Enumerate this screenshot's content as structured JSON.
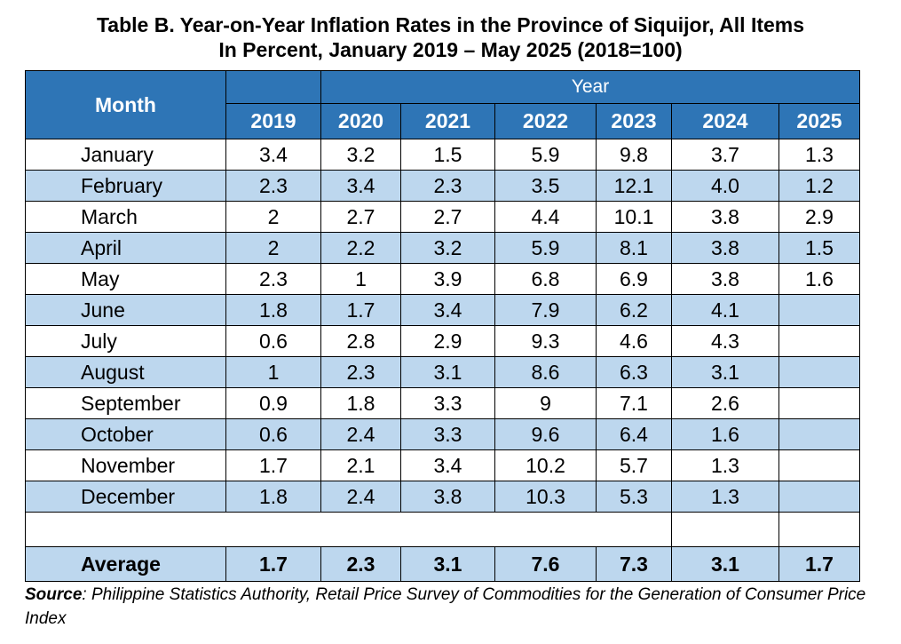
{
  "title": {
    "line1": "Table B. Year-on-Year Inflation Rates in the Province of Siquijor, All Items",
    "line2": "In Percent, January 2019 – May 2025 (2018=100)"
  },
  "table": {
    "month_header": "Month",
    "year_header": "Year",
    "years": [
      "2019",
      "2020",
      "2021",
      "2022",
      "2023",
      "2024",
      "2025"
    ],
    "rows": [
      {
        "month": "January",
        "values": [
          "3.4",
          "3.2",
          "1.5",
          "5.9",
          "9.8",
          "3.7",
          "1.3"
        ]
      },
      {
        "month": "February",
        "values": [
          "2.3",
          "3.4",
          "2.3",
          "3.5",
          "12.1",
          "4.0",
          "1.2"
        ]
      },
      {
        "month": "March",
        "values": [
          "2",
          "2.7",
          "2.7",
          "4.4",
          "10.1",
          "3.8",
          "2.9"
        ]
      },
      {
        "month": "April",
        "values": [
          "2",
          "2.2",
          "3.2",
          "5.9",
          "8.1",
          "3.8",
          "1.5"
        ]
      },
      {
        "month": "May",
        "values": [
          "2.3",
          "1",
          "3.9",
          "6.8",
          "6.9",
          "3.8",
          "1.6"
        ]
      },
      {
        "month": "June",
        "values": [
          "1.8",
          "1.7",
          "3.4",
          "7.9",
          "6.2",
          "4.1",
          ""
        ]
      },
      {
        "month": "July",
        "values": [
          "0.6",
          "2.8",
          "2.9",
          "9.3",
          "4.6",
          "4.3",
          ""
        ]
      },
      {
        "month": "August",
        "values": [
          "1",
          "2.3",
          "3.1",
          "8.6",
          "6.3",
          "3.1",
          ""
        ]
      },
      {
        "month": "September",
        "values": [
          "0.9",
          "1.8",
          "3.3",
          "9",
          "7.1",
          "2.6",
          ""
        ]
      },
      {
        "month": "October",
        "values": [
          "0.6",
          "2.4",
          "3.3",
          "9.6",
          "6.4",
          "1.6",
          ""
        ]
      },
      {
        "month": "November",
        "values": [
          "1.7",
          "2.1",
          "3.4",
          "10.2",
          "5.7",
          "1.3",
          ""
        ]
      },
      {
        "month": "December",
        "values": [
          "1.8",
          "2.4",
          "3.8",
          "10.3",
          "5.3",
          "1.3",
          ""
        ]
      }
    ],
    "average": {
      "label": "Average",
      "values": [
        "1.7",
        "2.3",
        "3.1",
        "7.6",
        "7.3",
        "3.1",
        "1.7"
      ]
    }
  },
  "source": {
    "label": "Source",
    "text": ": Philippine Statistics Authority, Retail Price Survey of Commodities for the Generation of Consumer Price Index"
  },
  "colors": {
    "header_fill": "#2e75b6",
    "band_fill": "#bdd7ee"
  }
}
